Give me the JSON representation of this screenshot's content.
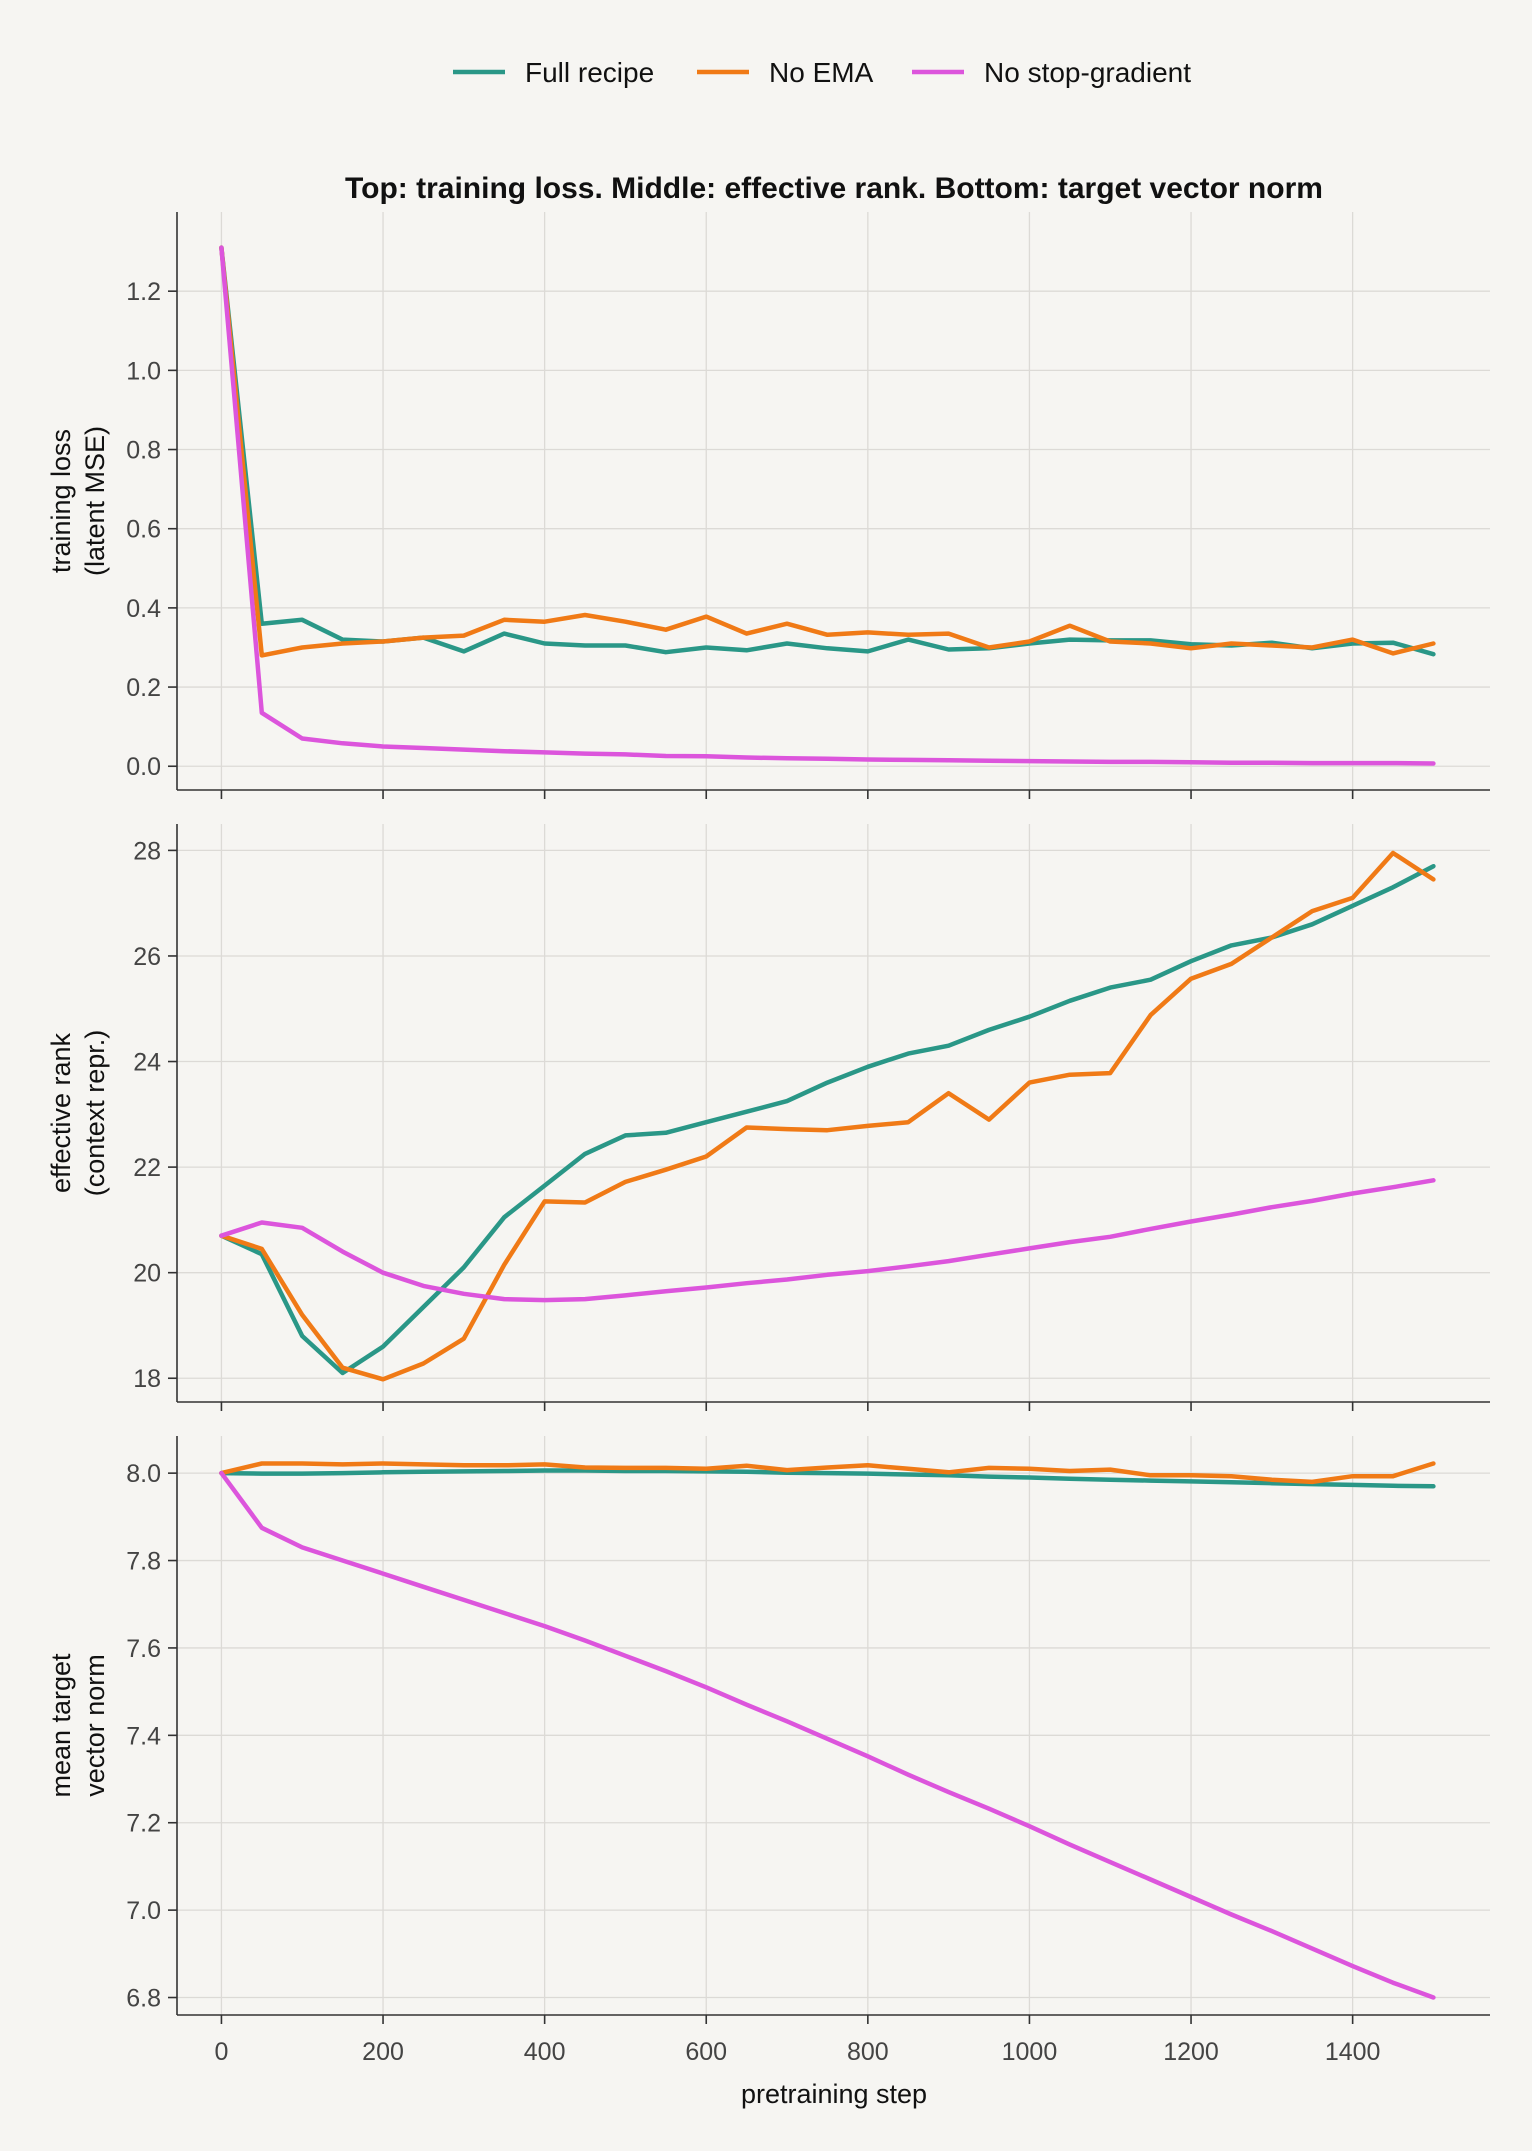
{
  "chart_data": {
    "type": "line",
    "title": "Top: training loss. Middle: effective rank. Bottom: target vector norm",
    "xlabel": "pretraining step",
    "xlim": [
      -55,
      1570
    ],
    "xticks": [
      0,
      200,
      400,
      600,
      800,
      1000,
      1200,
      1400
    ],
    "legend_position": "top-center",
    "grid": true,
    "x": [
      0,
      50,
      100,
      150,
      200,
      250,
      300,
      350,
      400,
      450,
      500,
      550,
      600,
      650,
      700,
      750,
      800,
      850,
      900,
      950,
      1000,
      1050,
      1100,
      1150,
      1200,
      1250,
      1300,
      1350,
      1400,
      1450,
      1500
    ],
    "legend": [
      {
        "name": "Full recipe",
        "color": "#2a9787"
      },
      {
        "name": "No EMA",
        "color": "#f07a16"
      },
      {
        "name": "No stop-gradient",
        "color": "#dc55dc"
      }
    ],
    "panels": [
      {
        "ylabel": [
          "training loss",
          "(latent MSE)"
        ],
        "ylim": [
          -0.06,
          1.4
        ],
        "yticks": [
          0.0,
          0.2,
          0.4,
          0.6,
          0.8,
          1.0,
          1.2
        ],
        "tick_decimals": 1,
        "series": [
          {
            "name": "Full recipe",
            "values": [
              1.31,
              0.36,
              0.37,
              0.32,
              0.315,
              0.325,
              0.29,
              0.335,
              0.31,
              0.305,
              0.305,
              0.288,
              0.3,
              0.293,
              0.31,
              0.298,
              0.29,
              0.32,
              0.295,
              0.298,
              0.31,
              0.32,
              0.318,
              0.318,
              0.308,
              0.305,
              0.312,
              0.298,
              0.31,
              0.312,
              0.283
            ]
          },
          {
            "name": "No EMA",
            "values": [
              1.31,
              0.28,
              0.3,
              0.31,
              0.315,
              0.325,
              0.33,
              0.37,
              0.365,
              0.382,
              0.365,
              0.345,
              0.378,
              0.335,
              0.36,
              0.332,
              0.338,
              0.332,
              0.335,
              0.3,
              0.315,
              0.355,
              0.315,
              0.31,
              0.298,
              0.31,
              0.305,
              0.3,
              0.32,
              0.285,
              0.31
            ]
          },
          {
            "name": "No stop-gradient",
            "values": [
              1.31,
              0.135,
              0.07,
              0.058,
              0.05,
              0.046,
              0.042,
              0.038,
              0.035,
              0.032,
              0.03,
              0.026,
              0.025,
              0.022,
              0.02,
              0.019,
              0.017,
              0.016,
              0.015,
              0.014,
              0.013,
              0.012,
              0.011,
              0.011,
              0.01,
              0.009,
              0.009,
              0.008,
              0.008,
              0.008,
              0.007
            ]
          }
        ]
      },
      {
        "ylabel": [
          "effective rank",
          "(context repr.)"
        ],
        "ylim": [
          17.55,
          28.5
        ],
        "yticks": [
          18,
          20,
          22,
          24,
          26,
          28
        ],
        "tick_decimals": 0,
        "series": [
          {
            "name": "Full recipe",
            "values": [
              20.7,
              20.35,
              18.8,
              18.1,
              18.6,
              19.35,
              20.1,
              21.05,
              21.65,
              22.25,
              22.6,
              22.65,
              22.85,
              23.05,
              23.25,
              23.6,
              23.9,
              24.15,
              24.3,
              24.6,
              24.85,
              25.15,
              25.4,
              25.55,
              25.9,
              26.2,
              26.35,
              26.6,
              26.95,
              27.3,
              27.7
            ]
          },
          {
            "name": "No EMA",
            "values": [
              20.7,
              20.45,
              19.2,
              18.2,
              17.98,
              18.28,
              18.75,
              20.15,
              21.35,
              21.33,
              21.72,
              21.95,
              22.2,
              22.75,
              22.72,
              22.7,
              22.78,
              22.85,
              23.4,
              22.9,
              23.6,
              23.75,
              23.78,
              24.88,
              25.57,
              25.85,
              26.35,
              26.85,
              27.1,
              27.95,
              27.45
            ]
          },
          {
            "name": "No stop-gradient",
            "values": [
              20.7,
              20.95,
              20.85,
              20.4,
              20.0,
              19.75,
              19.6,
              19.5,
              19.48,
              19.5,
              19.57,
              19.65,
              19.72,
              19.8,
              19.87,
              19.96,
              20.03,
              20.12,
              20.22,
              20.34,
              20.46,
              20.58,
              20.68,
              20.83,
              20.97,
              21.1,
              21.24,
              21.36,
              21.5,
              21.62,
              21.75
            ]
          }
        ]
      },
      {
        "ylabel": [
          "mean target",
          "vector norm"
        ],
        "ylim": [
          6.76,
          8.085
        ],
        "yticks": [
          6.8,
          7.0,
          7.2,
          7.4,
          7.6,
          7.8,
          8.0
        ],
        "tick_decimals": 1,
        "series": [
          {
            "name": "Full recipe",
            "values": [
              8.0,
              7.999,
              7.999,
              8.0,
              8.002,
              8.003,
              8.004,
              8.005,
              8.006,
              8.006,
              8.005,
              8.005,
              8.004,
              8.003,
              8.001,
              8.0,
              7.999,
              7.997,
              7.995,
              7.992,
              7.99,
              7.987,
              7.985,
              7.983,
              7.981,
              7.979,
              7.977,
              7.975,
              7.973,
              7.971,
              7.97
            ]
          },
          {
            "name": "No EMA",
            "values": [
              8.0,
              8.022,
              8.022,
              8.02,
              8.022,
              8.02,
              8.018,
              8.018,
              8.02,
              8.013,
              8.012,
              8.012,
              8.01,
              8.017,
              8.007,
              8.013,
              8.018,
              8.01,
              8.002,
              8.012,
              8.01,
              8.005,
              8.008,
              7.995,
              7.995,
              7.993,
              7.985,
              7.98,
              7.993,
              7.993,
              8.022
            ]
          },
          {
            "name": "No stop-gradient",
            "values": [
              8.0,
              7.875,
              7.83,
              7.8,
              7.77,
              7.74,
              7.71,
              7.68,
              7.65,
              7.617,
              7.582,
              7.547,
              7.51,
              7.47,
              7.432,
              7.392,
              7.352,
              7.31,
              7.27,
              7.232,
              7.192,
              7.15,
              7.11,
              7.07,
              7.03,
              6.99,
              6.952,
              6.912,
              6.872,
              6.834,
              6.8
            ]
          }
        ]
      }
    ]
  }
}
